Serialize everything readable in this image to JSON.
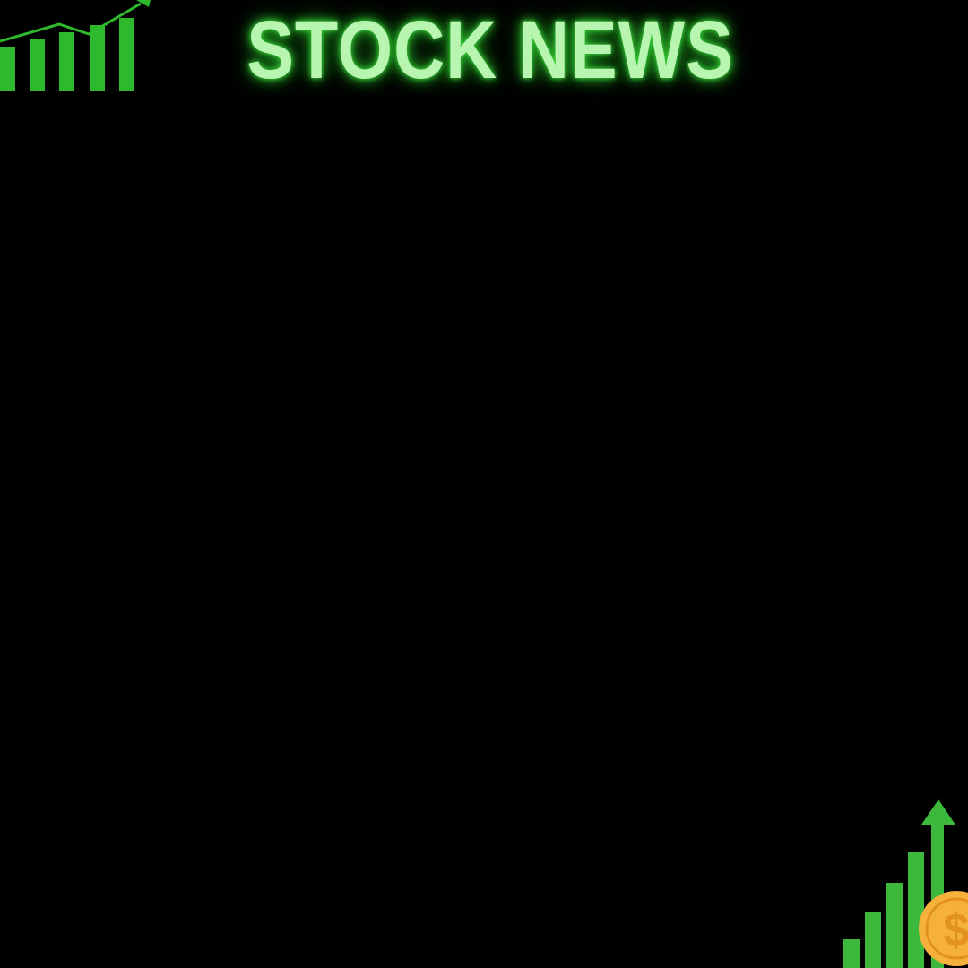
{
  "header": {
    "title": "STOCK NEWS"
  },
  "decorations": {
    "top_left": {
      "icon": "growth-bar-chart-icon",
      "color": "#2db82d"
    },
    "bottom_right": {
      "icon": "growth-bar-chart-icon",
      "color": "#3cb83c",
      "coin_icon": "dollar-coin-icon",
      "coin_symbol": "$",
      "coin_color": "#f6b03c"
    }
  },
  "colors": {
    "background": "#000000",
    "title_fill": "#b8f5b0",
    "title_glow": "#3cd23c"
  }
}
